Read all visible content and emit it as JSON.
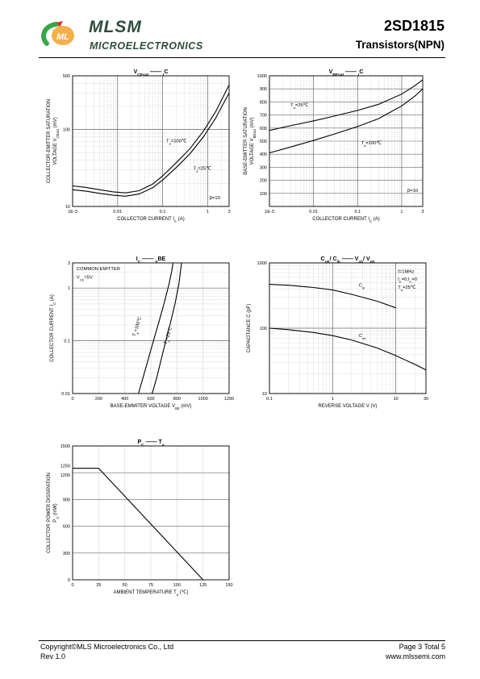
{
  "header": {
    "brand": "MLSM",
    "brand_sub": "MICROELECTRONICS",
    "logo_text": "ML",
    "part_number": "2SD1815",
    "part_type": "Transistors(NPN)"
  },
  "footer": {
    "copyright": "Copyright©MLS Microelectronics Co., Ltd",
    "rev": "Rev 1.0",
    "page": "Page 3 Total 5",
    "url": "www.mlssemi.com"
  },
  "colors": {
    "brand_green": "#2e4d3a",
    "logo_green": "#3aa64a",
    "logo_red": "#d9302c",
    "logo_orange": "#f2a12b"
  },
  "chart_data": [
    {
      "type": "line",
      "title_parts": [
        "V",
        "CEsat",
        " —— ",
        "I",
        "C"
      ],
      "xlabel_parts": [
        "COLLECTOR CURRENT   I",
        "C",
        "   (A)"
      ],
      "ylabel_lines": [
        "COLLECTOR-EMITTER SATURATION",
        "VOLTAGE   V"
      ],
      "ylabel_sub": "CEsat",
      "ylabel_unit": "(mV)",
      "xscale": "log",
      "yscale": "log",
      "xlim": [
        0.001,
        3
      ],
      "ylim": [
        10,
        500
      ],
      "xticks": [
        0.001,
        0.01,
        0.1,
        1,
        3
      ],
      "xtick_labels": [
        "1E-3",
        "0.01",
        "0.1",
        "1",
        "3"
      ],
      "yticks": [
        10,
        100,
        500
      ],
      "ytick_labels": [
        "10",
        "100",
        "500"
      ],
      "series": [
        {
          "x": [
            0.001,
            0.002,
            0.004,
            0.008,
            0.015,
            0.03,
            0.06,
            0.1,
            0.2,
            0.4,
            0.8,
            1.5,
            3
          ],
          "y": [
            16.5,
            15.8,
            14.8,
            14.0,
            13.6,
            14.5,
            17.5,
            22,
            32,
            48,
            80,
            140,
            300
          ]
        },
        {
          "x": [
            0.001,
            0.002,
            0.004,
            0.008,
            0.015,
            0.03,
            0.06,
            0.1,
            0.2,
            0.4,
            0.8,
            1.5,
            3
          ],
          "y": [
            18.5,
            17.7,
            16.5,
            15.5,
            15.0,
            16.0,
            19.5,
            25,
            37,
            56,
            95,
            170,
            380
          ]
        }
      ],
      "annotations": [
        {
          "parts": [
            "T",
            "a",
            "=100℃"
          ],
          "x": 0.12,
          "y": 68
        },
        {
          "parts": [
            "T",
            "a",
            "=25℃"
          ],
          "x": 0.48,
          "y": 30
        },
        {
          "parts": [
            "β=10"
          ],
          "x": 1.1,
          "y": 12.5
        }
      ]
    },
    {
      "type": "line",
      "title_parts": [
        "V",
        "BEsat",
        " —— ",
        "I",
        "C"
      ],
      "xlabel_parts": [
        "COLLECTOR CURRENT   I",
        "C",
        "   (A)"
      ],
      "ylabel_lines": [
        "BASE-EMITTER SATURATION",
        "VOLTAGE   V"
      ],
      "ylabel_sub": "BEsat",
      "ylabel_unit": "(mV)",
      "xscale": "log",
      "yscale": "linear",
      "xlim": [
        0.001,
        3
      ],
      "ylim": [
        0,
        1000
      ],
      "xticks": [
        0.001,
        0.01,
        0.1,
        1,
        3
      ],
      "xtick_labels": [
        "1E-3",
        "0.01",
        "0.1",
        "1",
        "3"
      ],
      "yticks": [
        0,
        100,
        200,
        300,
        400,
        500,
        600,
        700,
        800,
        900,
        1000
      ],
      "ytick_labels": [
        "",
        "100",
        "200",
        "300",
        "400",
        "500",
        "600",
        "700",
        "800",
        "900",
        "1000"
      ],
      "series": [
        {
          "x": [
            0.001,
            0.003,
            0.01,
            0.03,
            0.1,
            0.3,
            1,
            2,
            3
          ],
          "y": [
            582,
            618,
            655,
            692,
            735,
            782,
            860,
            925,
            970
          ]
        },
        {
          "x": [
            0.001,
            0.003,
            0.01,
            0.03,
            0.1,
            0.3,
            1,
            2,
            3
          ],
          "y": [
            410,
            455,
            505,
            555,
            612,
            672,
            770,
            845,
            900
          ]
        }
      ],
      "annotations": [
        {
          "parts": [
            "T",
            "a",
            "=25℃"
          ],
          "x": 0.003,
          "y": 765
        },
        {
          "parts": [
            "T",
            "a",
            "=100℃"
          ],
          "x": 0.12,
          "y": 475
        },
        {
          "parts": [
            "β=10"
          ],
          "x": 1.35,
          "y": 110
        }
      ]
    },
    {
      "type": "line",
      "title_parts": [
        "I",
        "C",
        " —— ",
        "V",
        "BE"
      ],
      "xlabel_parts": [
        "BASE-EMMITER VOLTAGE   V",
        "BE",
        "   (mV)"
      ],
      "ylabel_lines": [
        "COLLECTOR CURRENT   I"
      ],
      "ylabel_sub": "C",
      "ylabel_unit": "(A)",
      "xscale": "linear",
      "yscale": "log",
      "xlim": [
        0,
        1200
      ],
      "ylim": [
        0.01,
        3
      ],
      "xticks": [
        0,
        200,
        400,
        600,
        800,
        1000,
        1200
      ],
      "xtick_labels": [
        "0",
        "200",
        "400",
        "600",
        "800",
        "1000",
        "1200"
      ],
      "yticks": [
        0.01,
        0.1,
        1,
        3
      ],
      "ytick_labels": [
        "0.01",
        "0.1",
        "1",
        "3"
      ],
      "series": [
        {
          "x": [
            505,
            540,
            580,
            620,
            660,
            700,
            740,
            760,
            770
          ],
          "y": [
            0.01,
            0.02,
            0.045,
            0.1,
            0.22,
            0.5,
            1.2,
            2.1,
            3
          ]
        },
        {
          "x": [
            610,
            645,
            680,
            715,
            750,
            785,
            815,
            835
          ],
          "y": [
            0.01,
            0.02,
            0.045,
            0.1,
            0.22,
            0.5,
            1.2,
            3
          ]
        }
      ],
      "annotations": [
        {
          "parts": [
            "COMMON EMITTER"
          ],
          "x": 30,
          "y": 2.2
        },
        {
          "parts": [
            "V",
            "CE",
            "=5V"
          ],
          "x": 30,
          "y": 1.5
        },
        {
          "parts": [
            "T",
            "a",
            "=100℃"
          ],
          "x": 480,
          "y": 0.12,
          "rotate": -72
        },
        {
          "parts": [
            "T",
            "a",
            "=25℃"
          ],
          "x": 720,
          "y": 0.085,
          "rotate": -72
        }
      ]
    },
    {
      "type": "line",
      "title_parts": [
        "C",
        "ob",
        "/ C",
        "ib",
        "  ——  V",
        "cb",
        "/ V",
        "eb"
      ],
      "xlabel_parts": [
        "REVERSE VOLTAGE   V   (V)"
      ],
      "ylabel_lines": [
        "CAPACITANCE   C   (pF)"
      ],
      "ylabel_sub": "",
      "ylabel_unit": "",
      "xscale": "log",
      "yscale": "log",
      "xlim": [
        0.1,
        30
      ],
      "ylim": [
        10,
        1000
      ],
      "xticks": [
        0.1,
        1,
        10,
        30
      ],
      "xtick_labels": [
        "0.1",
        "1",
        "10",
        "30"
      ],
      "yticks": [
        10,
        100,
        1000
      ],
      "ytick_labels": [
        "10",
        "100",
        "1000"
      ],
      "series": [
        {
          "name": "Cib",
          "x": [
            0.1,
            0.2,
            0.5,
            1,
            2,
            5,
            10
          ],
          "y": [
            470,
            455,
            420,
            385,
            330,
            260,
            205
          ]
        },
        {
          "name": "Cob",
          "x": [
            0.1,
            0.2,
            0.5,
            1,
            2,
            5,
            10,
            20,
            30
          ],
          "y": [
            100,
            95,
            86,
            77,
            66,
            50,
            38,
            28,
            23
          ]
        }
      ],
      "annotations": [
        {
          "parts": [
            "f=1MHz"
          ],
          "x": 10.8,
          "y": 700
        },
        {
          "parts": [
            "I",
            "E",
            "=0,I",
            "C",
            "=0"
          ],
          "x": 10.8,
          "y": 535
        },
        {
          "parts": [
            "T",
            "a",
            "=25℃"
          ],
          "x": 10.8,
          "y": 405
        },
        {
          "parts": [
            "C",
            "ib"
          ],
          "x": 2.6,
          "y": 430
        },
        {
          "parts": [
            "C",
            "ob"
          ],
          "x": 2.6,
          "y": 73
        }
      ]
    },
    {
      "type": "line",
      "title_parts": [
        "P",
        "C",
        "  ——  T",
        "a"
      ],
      "xlabel_parts": [
        "AMBIENT TEMPERATURE    T",
        "a",
        "   (℃)"
      ],
      "ylabel_lines": [
        "COLLECTOR POWER DISSIPATION",
        "P"
      ],
      "ylabel_sub": "C",
      "ylabel_unit": "(mW)",
      "xscale": "linear",
      "yscale": "linear",
      "xlim": [
        0,
        150
      ],
      "ylim": [
        0,
        1500
      ],
      "xticks": [
        0,
        25,
        50,
        75,
        100,
        125,
        150
      ],
      "xtick_labels": [
        "0",
        "25",
        "50",
        "75",
        "100",
        "125",
        "150"
      ],
      "yticks": [
        0,
        300,
        600,
        900,
        1200,
        1250,
        1500
      ],
      "ytick_labels": [
        "0",
        "300",
        "600",
        "900",
        "1200",
        "1250",
        "1500"
      ],
      "grid_y": [
        300,
        600,
        900,
        1200,
        1500
      ],
      "series": [
        {
          "x": [
            0,
            25,
            125
          ],
          "y": [
            1250,
            1250,
            0
          ]
        }
      ],
      "annotations": []
    }
  ]
}
